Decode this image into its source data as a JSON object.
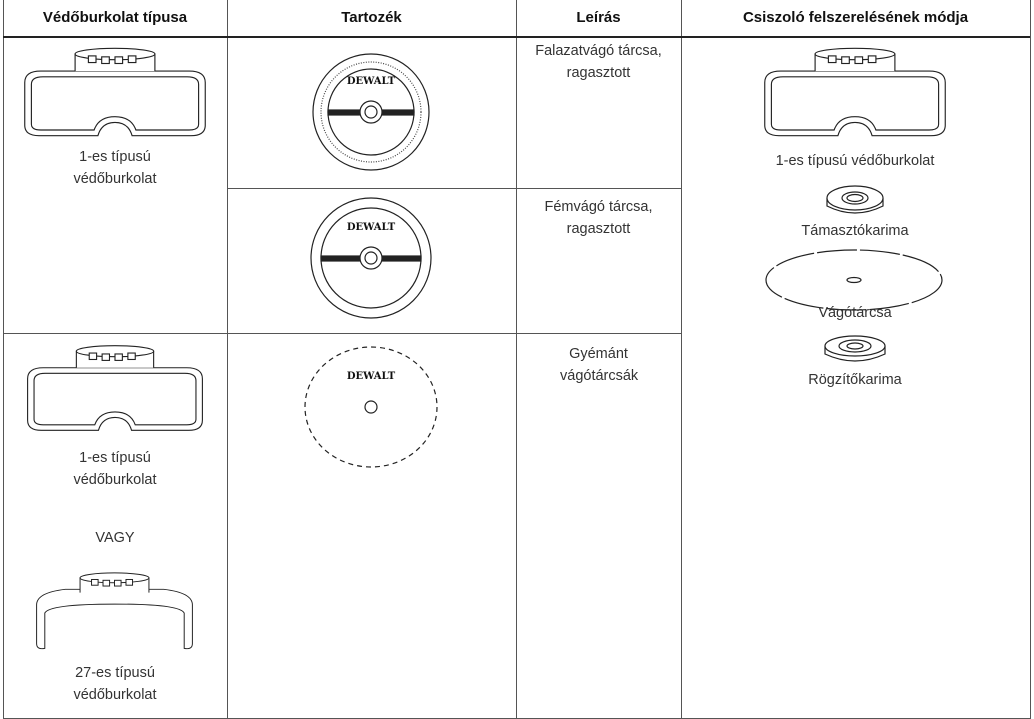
{
  "columns": [
    "Védőburkolat típusa",
    "Tartozék",
    "Leírás",
    "Csiszoló felszerelésének módja"
  ],
  "guard_cells": [
    {
      "labels": [
        "1-es típusú védőburkolat"
      ]
    },
    {
      "labels": [
        "1-es típusú védőburkolat",
        "VAGY",
        "27-es típusú védőburkolat"
      ]
    }
  ],
  "accessories": [
    {
      "logo": "DEWALT",
      "description": "Falazatvágó tárcsa, ragasztott"
    },
    {
      "logo": "DEWALT",
      "description": "Fémvágó tárcsa, ragasztott"
    },
    {
      "logo": "DEWALT",
      "description": "Gyémánt vágótárcsák"
    }
  ],
  "mounting": {
    "steps": [
      "1-es típusú védőburkolat",
      "Támasztókarima",
      "Vágótárcsa",
      "Rögzítőkarima"
    ]
  }
}
